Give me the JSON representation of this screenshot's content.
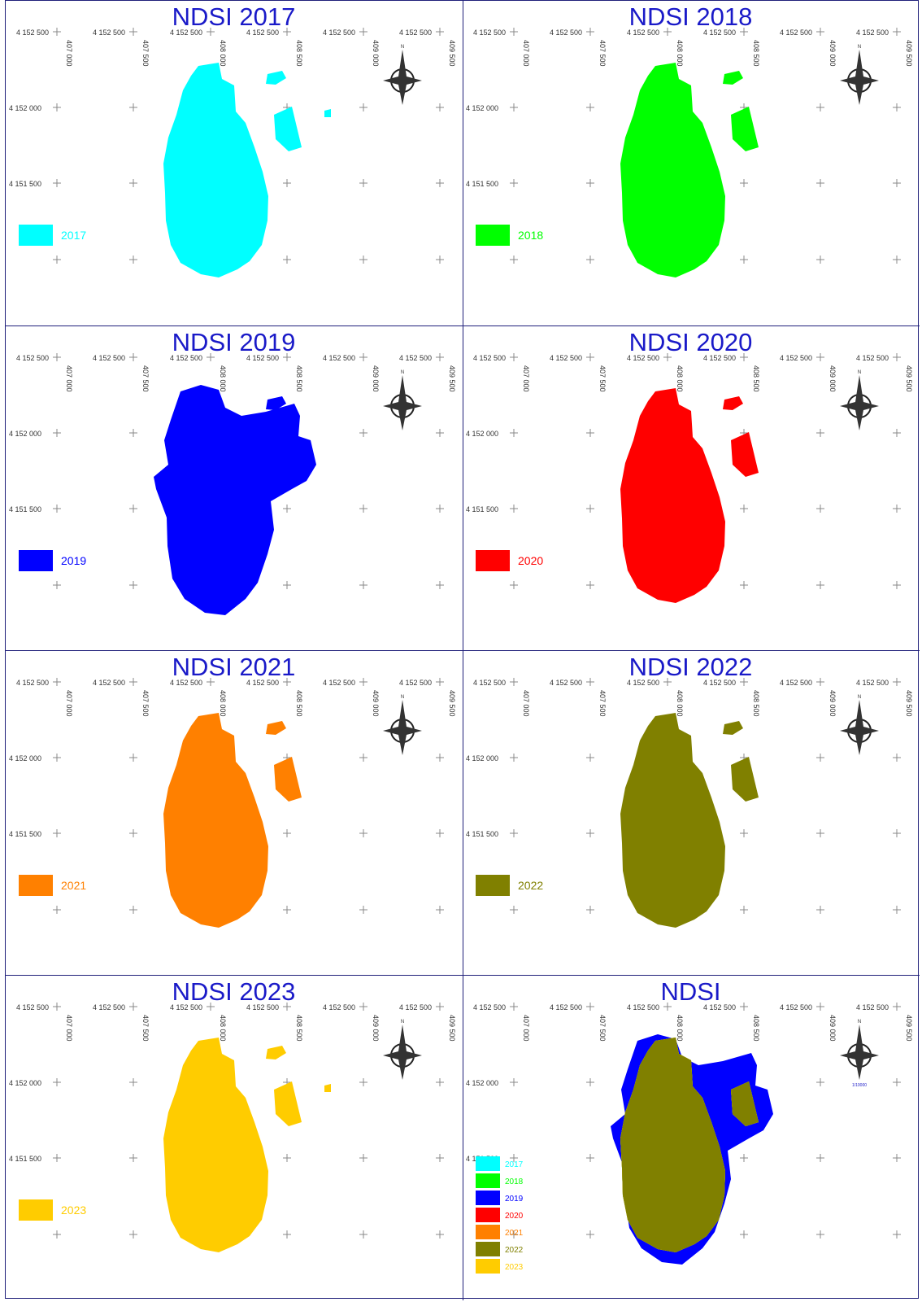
{
  "panels": [
    {
      "title": "NDSI 2017",
      "legend": [
        {
          "label": "2017",
          "color": "#00ffff"
        }
      ]
    },
    {
      "title": "NDSI 2018",
      "legend": [
        {
          "label": "2018",
          "color": "#00ff00"
        }
      ]
    },
    {
      "title": "NDSI 2019",
      "legend": [
        {
          "label": "2019",
          "color": "#0000ff"
        }
      ]
    },
    {
      "title": "NDSI 2020",
      "legend": [
        {
          "label": "2020",
          "color": "#ff0000"
        }
      ]
    },
    {
      "title": "NDSI 2021",
      "legend": [
        {
          "label": "2021",
          "color": "#ff8000"
        }
      ]
    },
    {
      "title": "NDSI 2022",
      "legend": [
        {
          "label": "2022",
          "color": "#808000"
        }
      ]
    },
    {
      "title": "NDSI 2023",
      "legend": [
        {
          "label": "2023",
          "color": "#ffcc00"
        }
      ]
    },
    {
      "title": "NDSI",
      "legend": [
        {
          "label": "2017",
          "color": "#00ffff"
        },
        {
          "label": "2018",
          "color": "#00ff00"
        },
        {
          "label": "2019",
          "color": "#0000ff"
        },
        {
          "label": "2020",
          "color": "#ff0000"
        },
        {
          "label": "2021",
          "color": "#ff8000"
        },
        {
          "label": "2022",
          "color": "#808000"
        },
        {
          "label": "2023",
          "color": "#ffcc00"
        }
      ],
      "scale": "1/10000"
    }
  ],
  "coordinates": {
    "top_row": [
      "4 152 500",
      "4 152 500",
      "4 152 500",
      "4 152 500",
      "4 152 500",
      "4 152 500"
    ],
    "eastings": [
      "407 000",
      "407 500",
      "408 000",
      "408 500",
      "409 000",
      "409 500"
    ],
    "northings": [
      "4 152 000",
      "4 151 500"
    ]
  },
  "north_arrow_label": "N",
  "north_arrow_icon": "compass-rose-icon"
}
